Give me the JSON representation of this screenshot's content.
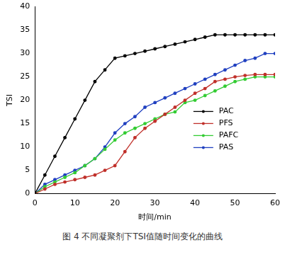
{
  "chart_data": {
    "type": "line",
    "title": "图 4 不同凝聚剂下TSI值随时间变化的曲线",
    "x_label": "时间/min",
    "y_label": "TSI",
    "x": [
      0,
      2.5,
      5,
      7.5,
      10,
      12.5,
      15,
      17.5,
      20,
      22.5,
      25,
      27.5,
      30,
      32.5,
      35,
      37.5,
      40,
      42.5,
      45,
      47.5,
      50,
      52.5,
      55,
      57.5,
      60
    ],
    "series": [
      {
        "name": "PAC",
        "color": "#000000",
        "values": [
          0,
          4,
          8,
          12,
          16,
          20,
          24,
          26.5,
          29,
          29.5,
          30,
          30.5,
          31,
          31.5,
          32,
          32.5,
          33,
          33.5,
          34,
          34,
          34,
          34,
          34,
          34,
          34
        ]
      },
      {
        "name": "PFS",
        "color": "#c0302a",
        "values": [
          0,
          1,
          2,
          2.5,
          3,
          3.5,
          4,
          5,
          6,
          9,
          12,
          14,
          15.5,
          17,
          18.5,
          20,
          21.5,
          22.5,
          24,
          24.5,
          25,
          25.3,
          25.5,
          25.5,
          25.5
        ]
      },
      {
        "name": "PAFC",
        "color": "#33cc33",
        "values": [
          0,
          1.5,
          2.5,
          3.5,
          4.5,
          6,
          7.5,
          9.5,
          11.5,
          13,
          14,
          15,
          16,
          17,
          17.5,
          19.5,
          20,
          21,
          22,
          23,
          24,
          24.5,
          25,
          25,
          25
        ]
      },
      {
        "name": "PAS",
        "color": "#2040c0",
        "values": [
          0,
          2,
          3,
          4,
          5,
          6,
          7.5,
          10,
          13,
          15,
          16.5,
          18.5,
          19.5,
          20.5,
          21.5,
          22.5,
          23.5,
          24.5,
          25.5,
          26.5,
          27.5,
          28.5,
          29,
          30,
          30
        ]
      }
    ],
    "xlim": [
      0,
      60
    ],
    "xticks": [
      0,
      10,
      20,
      30,
      40,
      50,
      60
    ],
    "ylim": [
      0,
      40
    ],
    "yticks": [
      0,
      5,
      10,
      15,
      20,
      25,
      30,
      35,
      40
    ],
    "grid": false,
    "legend": "right",
    "marker": "circle"
  }
}
